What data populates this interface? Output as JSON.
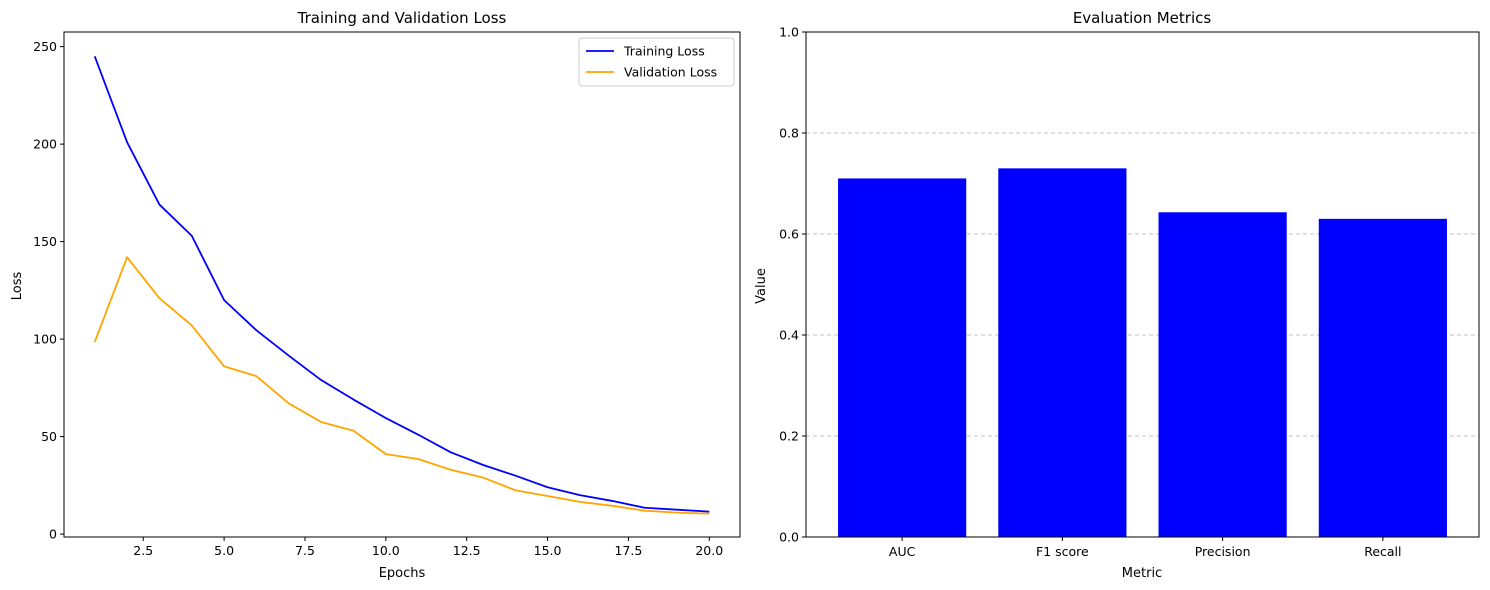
{
  "chart_data": [
    {
      "type": "line",
      "title": "Training and Validation Loss",
      "xlabel": "Epochs",
      "ylabel": "Loss",
      "xlim": [
        0.05,
        20.95
      ],
      "ylim": [
        -1.5,
        257.5
      ],
      "xticks": [
        2.5,
        5.0,
        7.5,
        10.0,
        12.5,
        15.0,
        17.5,
        20.0
      ],
      "xtick_labels": [
        "2.5",
        "5.0",
        "7.5",
        "10.0",
        "12.5",
        "15.0",
        "17.5",
        "20.0"
      ],
      "yticks": [
        0,
        50,
        100,
        150,
        200,
        250
      ],
      "ytick_labels": [
        "0",
        "50",
        "100",
        "150",
        "200",
        "250"
      ],
      "grid": false,
      "legend_position": "top-right",
      "x": [
        1,
        2,
        3,
        4,
        5,
        6,
        7,
        8,
        9,
        10,
        11,
        12,
        13,
        14,
        15,
        16,
        17,
        18,
        19,
        20
      ],
      "series": [
        {
          "name": "Training Loss",
          "color": "#0000ff",
          "values": [
            245,
            201,
            169,
            153,
            120,
            104.5,
            91.5,
            79,
            69,
            59.5,
            51,
            42,
            35.5,
            30,
            24,
            20,
            17,
            13.5,
            12.5,
            11.5
          ]
        },
        {
          "name": "Validation Loss",
          "color": "#ffa500",
          "values": [
            98.5,
            142,
            121,
            107,
            86,
            81,
            67,
            57.5,
            53,
            41,
            38.5,
            33,
            29,
            22.5,
            19.5,
            16.5,
            14.5,
            12,
            11,
            10.5
          ]
        }
      ]
    },
    {
      "type": "bar",
      "title": "Evaluation Metrics",
      "xlabel": "Metric",
      "ylabel": "Value",
      "ylim": [
        0,
        1
      ],
      "yticks": [
        0.0,
        0.2,
        0.4,
        0.6,
        0.8,
        1.0
      ],
      "ytick_labels": [
        "0.0",
        "0.2",
        "0.4",
        "0.6",
        "0.8",
        "1.0"
      ],
      "grid": "y-dashed",
      "grid_color": "#c0c0c0",
      "bar_color": "#0000ff",
      "categories": [
        "AUC",
        "F1 score",
        "Precision",
        "Recall"
      ],
      "values": [
        0.71,
        0.73,
        0.643,
        0.63
      ]
    }
  ]
}
